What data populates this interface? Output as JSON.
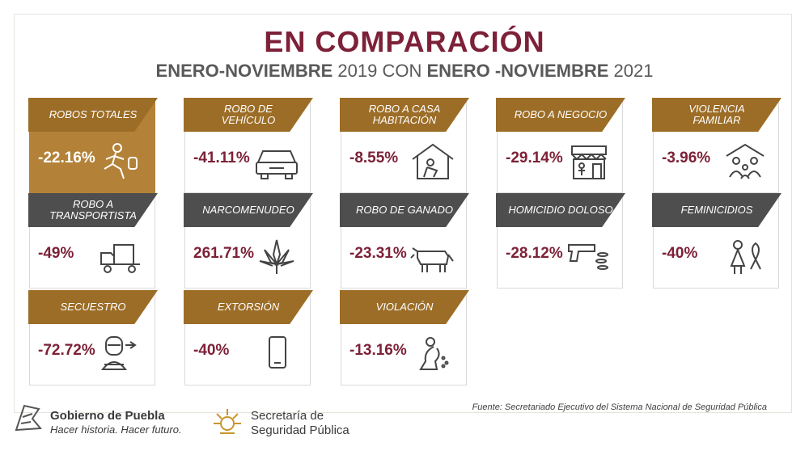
{
  "header": {
    "title": "EN COMPARACIÓN",
    "subtitle_part1": "ENERO-NOVIEMBRE",
    "subtitle_part2": " 2019 CON ",
    "subtitle_part3": "ENERO -NOVIEMBRE",
    "subtitle_part4": " 2021"
  },
  "cards": [
    {
      "label": "ROBOS TOTALES",
      "value": "-22.16%",
      "icon": "running-thief-icon"
    },
    {
      "label": "ROBO DE VEHÍCULO",
      "value": "-41.11%",
      "icon": "car-icon"
    },
    {
      "label": "ROBO A CASA HABITACIÓN",
      "value": "-8.55%",
      "icon": "house-burglar-icon"
    },
    {
      "label": "ROBO A NEGOCIO",
      "value": "-29.14%",
      "icon": "store-robbery-icon"
    },
    {
      "label": "VIOLENCIA FAMILIAR",
      "value": "-3.96%",
      "icon": "family-house-icon"
    },
    {
      "label": "ROBO A TRANSPORTISTA",
      "value": "-49%",
      "icon": "truck-icon"
    },
    {
      "label": "NARCOMENUDEO",
      "value": "261.71%",
      "icon": "cannabis-leaf-icon"
    },
    {
      "label": "ROBO DE GANADO",
      "value": "-23.31%",
      "icon": "cow-icon"
    },
    {
      "label": "HOMICIDIO DOLOSO",
      "value": "-28.12%",
      "icon": "gun-icon"
    },
    {
      "label": "FEMINICIDIOS",
      "value": "-40%",
      "icon": "woman-ribbon-icon"
    },
    {
      "label": "SECUESTRO",
      "value": "-72.72%",
      "icon": "hostage-icon"
    },
    {
      "label": "EXTORSIÓN",
      "value": "-40%",
      "icon": "cellphone-icon"
    },
    {
      "label": "VIOLACIÓN",
      "value": "-13.16%",
      "icon": "victim-kneeling-icon"
    }
  ],
  "footer": {
    "source": "Fuente: Secretariado Ejecutivo del Sistema Nacional de Seguridad Pública",
    "gov_name": "Gobierno de Puebla",
    "gov_slogan": "Hacer historia. Hacer futuro.",
    "ssp_line1": "Secretaría de",
    "ssp_line2": "Seguridad Pública"
  },
  "colors": {
    "accent": "#7d2138",
    "gold": "#9c6d27",
    "dark_gold": "#b38238",
    "grey": "#4e4e4e"
  }
}
